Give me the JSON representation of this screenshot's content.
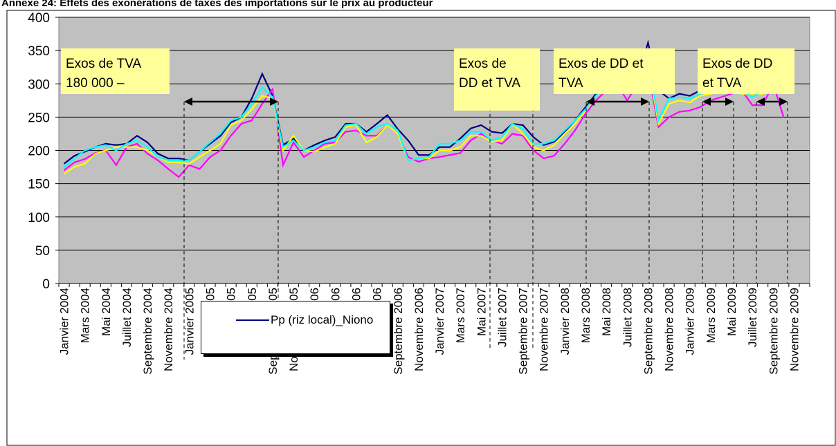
{
  "chart_data": {
    "type": "line",
    "title": "Annexe 24: Effets des exonérations de taxes des importations sur le prix au producteur",
    "categories": [
      "Janvier 2004",
      null,
      "Mars 2004",
      null,
      "Mai 2004",
      null,
      "Juillet 2004",
      null,
      "Septembre 2004",
      null,
      "Novembre 2004",
      null,
      "Janvier 2005",
      null,
      "Mars 2005",
      null,
      "Mai 2005",
      null,
      "Juillet 2005",
      null,
      "Septembre 2005",
      null,
      "Novembre 2005",
      null,
      "Janvier 2006",
      null,
      "Mars 2006",
      null,
      "Mai 2006",
      null,
      "Juillet 2006",
      null,
      "Septembre 2006",
      null,
      "Novembre 2006",
      null,
      "Janvier 2007",
      null,
      "Mars 2007",
      null,
      "Mai 2007",
      null,
      "Juillet 2007",
      null,
      "Septembre 2007",
      null,
      "Novembre 2007",
      null,
      "Janvier 2008",
      null,
      "Mars 2008",
      null,
      "Mai 2008",
      null,
      "Juillet 2008",
      null,
      "Septembre 2008",
      null,
      "Novembre 2008",
      null,
      "Janvier 2009",
      null,
      "Mars 2009",
      null,
      "Mai 2009",
      null,
      "Juillet 2009",
      null,
      "Septembre 2009",
      null,
      "Novembre 2009",
      null
    ],
    "series": [
      {
        "name": "Pp (riz local)_Niono",
        "color": "#000080",
        "values": [
          180,
          192,
          198,
          205,
          210,
          208,
          210,
          222,
          212,
          195,
          188,
          188,
          185,
          198,
          210,
          222,
          242,
          250,
          278,
          315,
          282,
          208,
          218,
          200,
          208,
          215,
          220,
          240,
          240,
          228,
          240,
          253,
          232,
          215,
          193,
          193,
          205,
          205,
          218,
          233,
          238,
          228,
          226,
          240,
          238,
          220,
          208,
          213,
          228,
          245,
          265,
          285,
          300,
          310,
          300,
          310,
          362,
          290,
          278,
          285,
          282,
          290,
          300,
          310,
          305,
          295,
          290,
          300,
          285,
          null,
          null,
          null
        ]
      },
      {
        "color": "#ff00ff",
        "values": [
          170,
          182,
          187,
          196,
          200,
          178,
          205,
          210,
          195,
          185,
          172,
          160,
          178,
          172,
          190,
          200,
          222,
          240,
          245,
          270,
          292,
          178,
          212,
          190,
          200,
          210,
          212,
          228,
          230,
          222,
          222,
          238,
          225,
          190,
          183,
          188,
          190,
          193,
          196,
          215,
          225,
          215,
          210,
          225,
          222,
          200,
          188,
          192,
          210,
          230,
          255,
          275,
          290,
          300,
          275,
          300,
          320,
          235,
          250,
          258,
          260,
          265,
          275,
          280,
          285,
          290,
          268,
          268,
          300,
          250,
          null,
          null
        ]
      },
      {
        "color": "#ffff00",
        "values": [
          165,
          175,
          180,
          195,
          200,
          205,
          205,
          205,
          200,
          190,
          182,
          182,
          180,
          190,
          200,
          210,
          238,
          245,
          262,
          282,
          278,
          200,
          222,
          200,
          198,
          205,
          210,
          235,
          238,
          212,
          220,
          238,
          225,
          185,
          188,
          188,
          200,
          200,
          205,
          222,
          222,
          213,
          215,
          240,
          225,
          205,
          200,
          208,
          225,
          240,
          260,
          282,
          295,
          305,
          298,
          305,
          330,
          240,
          270,
          275,
          272,
          282,
          285,
          290,
          290,
          285,
          285,
          285,
          300,
          null,
          null,
          null
        ]
      },
      {
        "color": "#00ffff",
        "values": [
          175,
          188,
          200,
          205,
          208,
          200,
          210,
          215,
          205,
          190,
          185,
          185,
          185,
          198,
          212,
          225,
          245,
          250,
          270,
          295,
          280,
          205,
          215,
          200,
          205,
          212,
          215,
          238,
          240,
          225,
          235,
          240,
          230,
          185,
          188,
          190,
          210,
          210,
          215,
          228,
          228,
          215,
          220,
          240,
          232,
          210,
          210,
          215,
          230,
          245,
          262,
          282,
          298,
          305,
          295,
          305,
          340,
          245,
          278,
          280,
          278,
          285,
          290,
          295,
          292,
          290,
          280,
          290,
          300,
          null,
          null,
          null
        ]
      }
    ],
    "ylim": [
      0,
      400
    ],
    "yticks": [
      0,
      50,
      100,
      150,
      200,
      250,
      300,
      350,
      400
    ],
    "grid": true,
    "annotations": [
      [
        "Exos de TVA",
        "180 000 –"
      ],
      [
        "Exos de",
        "DD et TVA"
      ],
      [
        "Exos de DD et",
        "TVA"
      ],
      [
        "Exos de DD",
        "et TVA"
      ]
    ]
  }
}
